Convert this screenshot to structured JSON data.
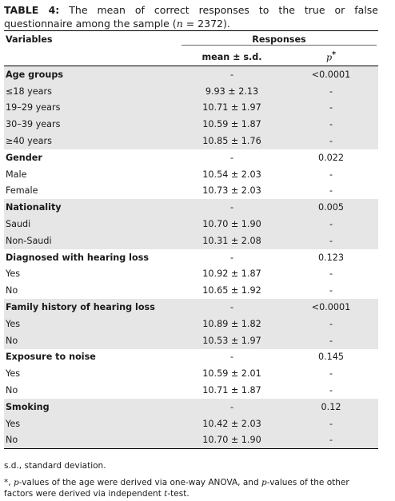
{
  "caption": {
    "label": "TABLE 4:",
    "text_a": " The mean of correct responses to the true or false questionnaire among the sample (",
    "n_symbol": "n",
    "text_b": " = 2372)."
  },
  "header": {
    "variables": "Variables",
    "responses": "Responses",
    "mean_sd": "mean ± s.d.",
    "p_symbol": "p",
    "p_mark": "*"
  },
  "rows": [
    {
      "label": "Age groups",
      "mean": "-",
      "p": "<0.0001",
      "group": true,
      "shaded": true
    },
    {
      "label": "≤18 years",
      "mean": "9.93 ± 2.13",
      "p": "-",
      "group": false,
      "shaded": true
    },
    {
      "label": "19–29 years",
      "mean": "10.71 ± 1.97",
      "p": "-",
      "group": false,
      "shaded": true
    },
    {
      "label": "30–39 years",
      "mean": "10.59 ± 1.87",
      "p": "-",
      "group": false,
      "shaded": true
    },
    {
      "label": "≥40 years",
      "mean": "10.85 ± 1.76",
      "p": "-",
      "group": false,
      "shaded": true
    },
    {
      "label": "Gender",
      "mean": "-",
      "p": "0.022",
      "group": true,
      "shaded": false
    },
    {
      "label": "Male",
      "mean": "10.54 ± 2.03",
      "p": "-",
      "group": false,
      "shaded": false
    },
    {
      "label": "Female",
      "mean": "10.73 ± 2.03",
      "p": "-",
      "group": false,
      "shaded": false
    },
    {
      "label": "Nationality",
      "mean": "-",
      "p": "0.005",
      "group": true,
      "shaded": true
    },
    {
      "label": "Saudi",
      "mean": "10.70 ± 1.90",
      "p": "-",
      "group": false,
      "shaded": true
    },
    {
      "label": "Non-Saudi",
      "mean": "10.31 ± 2.08",
      "p": "-",
      "group": false,
      "shaded": true
    },
    {
      "label": "Diagnosed with hearing loss",
      "mean": "-",
      "p": "0.123",
      "group": true,
      "shaded": false
    },
    {
      "label": "Yes",
      "mean": "10.92 ± 1.87",
      "p": "-",
      "group": false,
      "shaded": false
    },
    {
      "label": "No",
      "mean": "10.65 ± 1.92",
      "p": "-",
      "group": false,
      "shaded": false
    },
    {
      "label": "Family history of hearing loss",
      "mean": "-",
      "p": "<0.0001",
      "group": true,
      "shaded": true
    },
    {
      "label": "Yes",
      "mean": "10.89 ± 1.82",
      "p": "-",
      "group": false,
      "shaded": true
    },
    {
      "label": "No",
      "mean": "10.53 ± 1.97",
      "p": "-",
      "group": false,
      "shaded": true
    },
    {
      "label": "Exposure to noise",
      "mean": "-",
      "p": "0.145",
      "group": true,
      "shaded": false
    },
    {
      "label": "Yes",
      "mean": "10.59 ± 2.01",
      "p": "-",
      "group": false,
      "shaded": false
    },
    {
      "label": "No",
      "mean": "10.71 ± 1.87",
      "p": "-",
      "group": false,
      "shaded": false
    },
    {
      "label": "Smoking",
      "mean": "-",
      "p": "0.12",
      "group": true,
      "shaded": true
    },
    {
      "label": "Yes",
      "mean": "10.42 ± 2.03",
      "p": "-",
      "group": false,
      "shaded": true
    },
    {
      "label": "No",
      "mean": "10.70 ± 1.90",
      "p": "-",
      "group": false,
      "shaded": true
    }
  ],
  "footnotes": {
    "abbrev": "s.d., standard deviation.",
    "note_mark": "*, ",
    "note_p1": "p",
    "note_a": "-values of the age were derived via one-way ANOVA, and ",
    "note_p2": "p",
    "note_b": "-values of the other factors were derived via independent ",
    "note_t": "t",
    "note_c": "-test."
  }
}
